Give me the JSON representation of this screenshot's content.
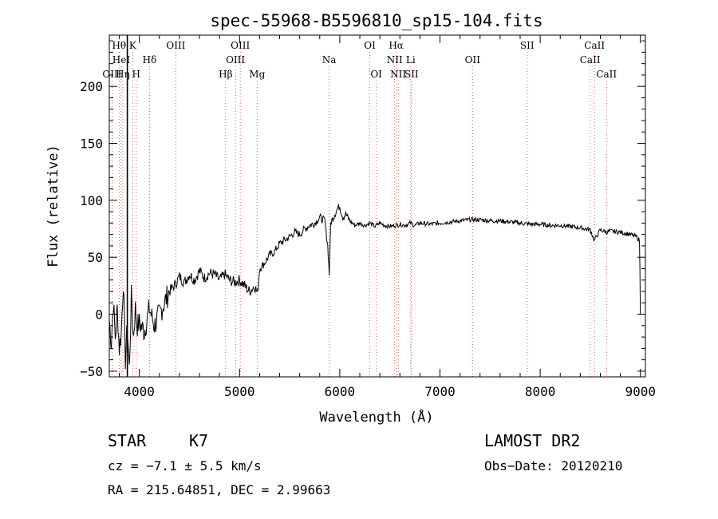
{
  "chart_data": {
    "type": "line",
    "title": "spec-55968-B5596810_sp15-104.fits",
    "xlabel": "Wavelength (Å)",
    "ylabel": "Flux (relative)",
    "xlim": [
      3700,
      9050
    ],
    "ylim": [
      -55,
      245
    ],
    "xticks": [
      4000,
      5000,
      6000,
      7000,
      8000,
      9000
    ],
    "xtick_labels": [
      "4000",
      "5000",
      "6000",
      "7000",
      "8000",
      "9000"
    ],
    "yticks": [
      -50,
      0,
      50,
      100,
      150,
      200
    ],
    "ytick_labels": [
      "−50",
      "0",
      "50",
      "100",
      "150",
      "200"
    ],
    "grid": false,
    "series": [
      {
        "x": [
          3700,
          3720,
          3740,
          3760,
          3780,
          3800,
          3820,
          3840,
          3860,
          3880,
          3900,
          3920,
          3940,
          3960,
          3980,
          4000,
          4050,
          4100,
          4150,
          4200,
          4250,
          4300,
          4350,
          4400,
          4450,
          4500,
          4550,
          4600,
          4650,
          4700,
          4750,
          4800,
          4850,
          4900,
          4950,
          5000,
          5050,
          5100,
          5150,
          5180,
          5200,
          5250,
          5300,
          5350,
          5400,
          5450,
          5500,
          5550,
          5600,
          5650,
          5700,
          5750,
          5800,
          5850,
          5880,
          5895,
          5910,
          5950,
          5980,
          6000,
          6030,
          6060,
          6100,
          6150,
          6200,
          6250,
          6300,
          6350,
          6400,
          6450,
          6500,
          6550,
          6600,
          6650,
          6700,
          6750,
          6800,
          6900,
          7000,
          7100,
          7200,
          7300,
          7400,
          7500,
          7600,
          7700,
          7800,
          7900,
          8000,
          8100,
          8200,
          8300,
          8400,
          8500,
          8540,
          8600,
          8660,
          8700,
          8800,
          8900,
          8960,
          8990,
          8995,
          9000
        ],
        "values": [
          -5,
          -25,
          10,
          -20,
          5,
          -30,
          -15,
          30,
          -40,
          -10,
          -48,
          15,
          -20,
          5,
          -10,
          -8,
          -15,
          5,
          -10,
          0,
          10,
          20,
          25,
          33,
          28,
          35,
          30,
          38,
          32,
          36,
          35,
          30,
          35,
          30,
          28,
          30,
          25,
          20,
          25,
          18,
          40,
          45,
          52,
          55,
          62,
          65,
          68,
          72,
          70,
          75,
          78,
          80,
          85,
          82,
          60,
          35,
          80,
          88,
          93,
          95,
          85,
          88,
          82,
          78,
          80,
          78,
          80,
          77,
          80,
          78,
          77,
          78,
          79,
          78,
          80,
          78,
          80,
          79,
          80,
          81,
          82,
          83,
          83,
          82,
          82,
          81,
          80,
          79,
          79,
          78,
          78,
          77,
          76,
          74,
          65,
          74,
          72,
          73,
          72,
          70,
          68,
          65,
          40,
          0
        ]
      }
    ],
    "lines": [
      {
        "label": "OIII",
        "x": 3727,
        "row": 3
      },
      {
        "label": "Hθ",
        "x": 3798,
        "row": 1
      },
      {
        "label": "HeI",
        "x": 3819,
        "row": 2
      },
      {
        "label": "Hη",
        "x": 3835,
        "row": 3
      },
      {
        "label": "K",
        "x": 3934,
        "row": 1
      },
      {
        "label": "H",
        "x": 3969,
        "row": 3
      },
      {
        "label": "Hδ",
        "x": 4102,
        "row": 2
      },
      {
        "label": "OIII",
        "x": 4364,
        "row": 1
      },
      {
        "label": "Hβ",
        "x": 4861,
        "row": 3
      },
      {
        "label": "OIII",
        "x": 4959,
        "row": 2
      },
      {
        "label": "OIII",
        "x": 5007,
        "row": 1
      },
      {
        "label": "Mg",
        "x": 5175,
        "row": 3
      },
      {
        "label": "Na",
        "x": 5894,
        "row": 2
      },
      {
        "label": "OI",
        "x": 6300,
        "row": 1
      },
      {
        "label": "OI",
        "x": 6364,
        "row": 3
      },
      {
        "label": "NII",
        "x": 6548,
        "row": 2
      },
      {
        "label": "Hα",
        "x": 6563,
        "row": 1
      },
      {
        "label": "NII",
        "x": 6583,
        "row": 3
      },
      {
        "label": "SII",
        "x": 6716,
        "row": 3
      },
      {
        "label": "Li",
        "x": 6708,
        "row": 2
      },
      {
        "label": "OII",
        "x": 7325,
        "row": 2
      },
      {
        "label": "SII",
        "x": 7870,
        "row": 1
      },
      {
        "label": "CaII",
        "x": 8498,
        "row": 2
      },
      {
        "label": "CaII",
        "x": 8542,
        "row": 1
      },
      {
        "label": "CaII",
        "x": 8662,
        "row": 3
      }
    ],
    "vertical_marker_x": 3880
  },
  "footer": {
    "object_type": "STAR",
    "subclass": "K7",
    "survey": "LAMOST DR2",
    "cz": "cz = −7.1 ± 5.5 km/s",
    "obs_date": "Obs−Date: 20120210",
    "coords": "RA = 215.64851, DEC =   2.99663"
  }
}
